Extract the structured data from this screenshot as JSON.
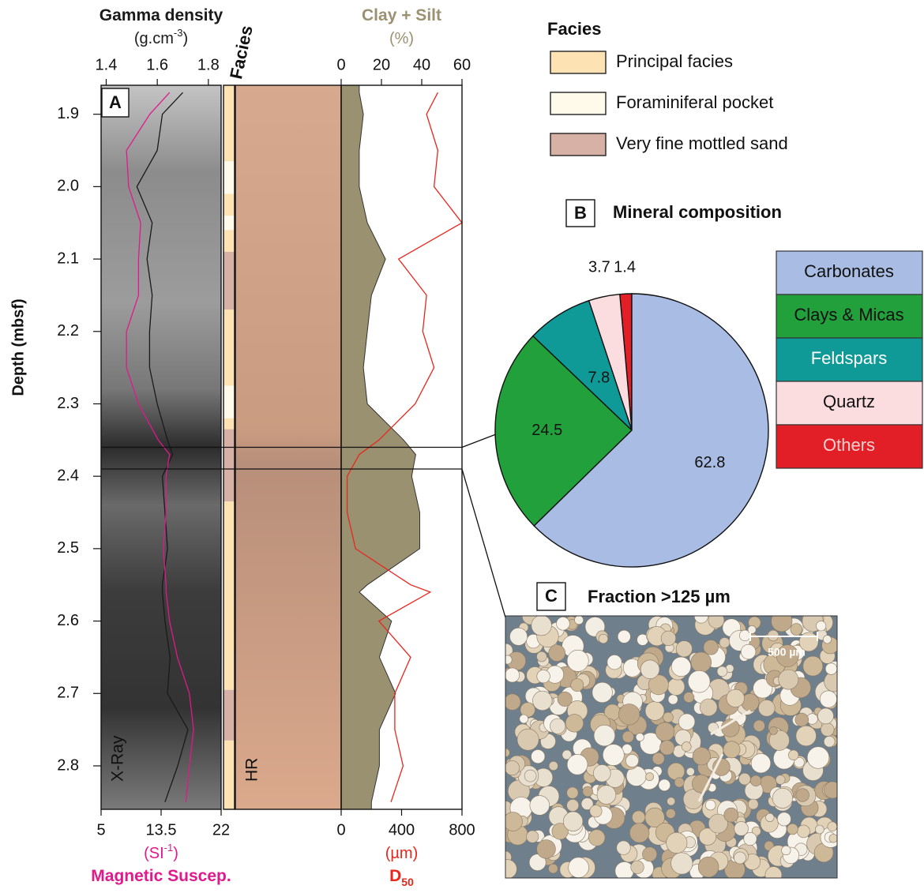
{
  "chart_data": [
    {
      "type": "core-log",
      "panel_label": "A",
      "y_label": "Depth (mbsf)",
      "ylim": [
        1.86,
        2.86
      ],
      "yticks": [
        1.9,
        {
          "value": 2,
          "label": "2.0"
        },
        2.1,
        2.2,
        2.3,
        2.4,
        2.5,
        2.6,
        2.7,
        2.8
      ],
      "depth": [
        1.87,
        1.9,
        1.95,
        2.0,
        2.05,
        2.1,
        2.15,
        2.2,
        2.25,
        2.3,
        2.35,
        2.37,
        2.4,
        2.45,
        2.5,
        2.55,
        2.56,
        2.6,
        2.65,
        2.7,
        2.75,
        2.8,
        2.85
      ],
      "sample_depths": [
        2.36,
        2.39
      ],
      "tracks": [
        {
          "image_label": "X-Ray",
          "series": [
            {
              "name": "Gamma density",
              "unit": [
                "(g.cm",
                "-3",
                ")"
              ],
              "color": "#1a1a1a",
              "xlim": [
                1.38,
                1.85
              ],
              "xticks": [
                1.4,
                1.6,
                1.8
              ],
              "values": [
                1.7,
                1.62,
                1.6,
                1.52,
                1.58,
                1.56,
                1.58,
                1.57,
                1.57,
                1.6,
                1.64,
                1.66,
                1.62,
                1.63,
                1.64,
                1.62,
                1.62,
                1.63,
                1.65,
                1.64,
                1.72,
                1.68,
                1.63
              ]
            },
            {
              "name": "Magnetic Suscep.",
              "unit": [
                "(SI",
                "-1",
                ")"
              ],
              "color": "#e0198c",
              "xlim": [
                5,
                22
              ],
              "xticks": [
                5,
                13.5,
                22
              ],
              "values": [
                14.7,
                11.9,
                8.6,
                8.9,
                10.6,
                10.3,
                10.3,
                8.6,
                8.6,
                10.3,
                13.1,
                14.7,
                14.2,
                14.2,
                13.8,
                14.2,
                14.2,
                14.7,
                15.8,
                17.5,
                18.1,
                17.5,
                17.0
              ]
            }
          ]
        },
        {
          "title": "Facies",
          "intervals": [
            {
              "top": 1.86,
              "bottom": 1.965,
              "facies": 0
            },
            {
              "top": 1.965,
              "bottom": 2.01,
              "facies": 1
            },
            {
              "top": 2.01,
              "bottom": 2.04,
              "facies": 0
            },
            {
              "top": 2.04,
              "bottom": 2.06,
              "facies": 1
            },
            {
              "top": 2.06,
              "bottom": 2.09,
              "facies": 0
            },
            {
              "top": 2.09,
              "bottom": 2.17,
              "facies": 2
            },
            {
              "top": 2.17,
              "bottom": 2.275,
              "facies": 0
            },
            {
              "top": 2.275,
              "bottom": 2.32,
              "facies": 1
            },
            {
              "top": 2.32,
              "bottom": 2.335,
              "facies": 0
            },
            {
              "top": 2.335,
              "bottom": 2.435,
              "facies": 2
            },
            {
              "top": 2.435,
              "bottom": 2.695,
              "facies": 0
            },
            {
              "top": 2.695,
              "bottom": 2.765,
              "facies": 2
            },
            {
              "top": 2.765,
              "bottom": 2.86,
              "facies": 0
            }
          ]
        },
        {
          "image_label": "HR"
        },
        {
          "series": [
            {
              "name": "Clay + Silt",
              "unit": [
                "(%)"
              ],
              "color": "#9a9170",
              "fill": true,
              "xlim": [
                0,
                60
              ],
              "xticks": [
                0,
                20,
                40,
                60
              ],
              "values": [
                9,
                11,
                9,
                9,
                13,
                22,
                15,
                13,
                11,
                13,
                31,
                37,
                35,
                39,
                39,
                13,
                9,
                25,
                19,
                27,
                19,
                19,
                15
              ]
            },
            {
              "name": "D",
              "name_sub": "50",
              "unit": [
                "(µm)"
              ],
              "color": "#e8261c",
              "xlim": [
                0,
                800
              ],
              "xticks": [
                0,
                400,
                800
              ],
              "values": [
                640,
                565,
                640,
                615,
                800,
                380,
                565,
                540,
                615,
                490,
                250,
                120,
                40,
                40,
                95,
                460,
                590,
                250,
                460,
                355,
                355,
                410,
                330
              ]
            }
          ]
        }
      ],
      "facies_legend": {
        "title": "Facies",
        "names": [
          "Principal facies",
          "Foraminiferal pocket",
          "Very fine mottled sand"
        ],
        "colors": [
          "#fde3b3",
          "#fffaea",
          "#d8b1a6"
        ]
      }
    },
    {
      "type": "pie",
      "panel_label": "B",
      "title": "Mineral composition",
      "categories": [
        "Carbonates",
        "Clays & Micas",
        "Feldspars",
        "Quartz",
        "Others"
      ],
      "values": [
        62.8,
        24.5,
        7.8,
        3.7,
        1.4
      ],
      "colors": [
        "#a9bce3",
        "#22a03c",
        "#0f9a98",
        "#fbdde0",
        "#e21e26"
      ]
    },
    {
      "type": "image",
      "panel_label": "C",
      "title": "Fraction >125 µm",
      "scale_bar": "500 µm"
    }
  ]
}
